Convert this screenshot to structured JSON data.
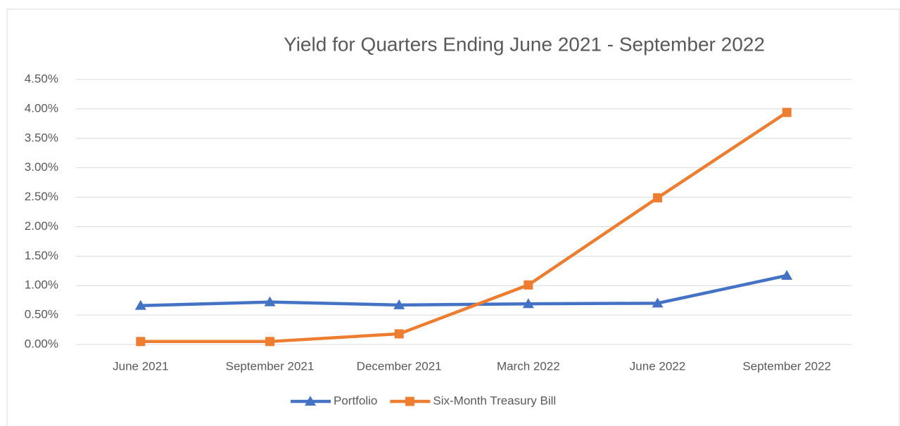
{
  "chart_data": {
    "type": "line",
    "title": "Yield for Quarters Ending June 2021 - September 2022",
    "categories": [
      "June 2021",
      "September 2021",
      "December 2021",
      "March 2022",
      "June 2022",
      "September 2022"
    ],
    "series": [
      {
        "name": "Portfolio",
        "color": "#4472c4",
        "marker": "triangle",
        "values": [
          0.66,
          0.72,
          0.67,
          0.69,
          0.7,
          1.17
        ]
      },
      {
        "name": "Six-Month Treasury Bill",
        "color": "#ed7d31",
        "marker": "square",
        "values": [
          0.05,
          0.05,
          0.18,
          1.01,
          2.49,
          3.94
        ]
      }
    ],
    "ylim": [
      0,
      4.5
    ],
    "yticks": [
      {
        "value": 0,
        "label": "0.00%"
      },
      {
        "value": 0.5,
        "label": "0.50%"
      },
      {
        "value": 1,
        "label": "1.00%"
      },
      {
        "value": 1.5,
        "label": "1.50%"
      },
      {
        "value": 2,
        "label": "2.00%"
      },
      {
        "value": 2.5,
        "label": "2.50%"
      },
      {
        "value": 3,
        "label": "3.00%"
      },
      {
        "value": 3.5,
        "label": "3.50%"
      },
      {
        "value": 4,
        "label": "4.00%"
      },
      {
        "value": 4.5,
        "label": "4.50%"
      }
    ],
    "grid": true,
    "legend": "bottom"
  }
}
